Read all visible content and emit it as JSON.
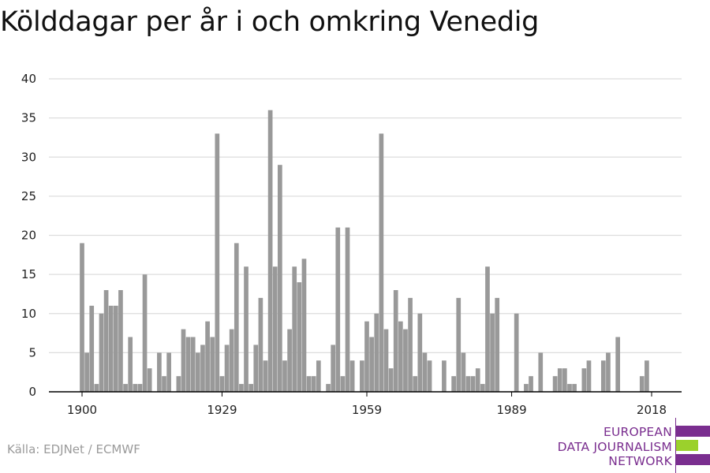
{
  "title": "Kölddagar per år i och omkring Venedig",
  "source": "Källa: EDJNet / ECMWF",
  "logo": {
    "lines": [
      "EUROPEAN",
      "DATA JOURNALISM",
      "NETWORK"
    ],
    "colors": {
      "purple": "#7a2e8f",
      "green": "#9bd12c"
    }
  },
  "colors": {
    "bar": "#999999",
    "grid": "#dddddd",
    "axis": "#000000"
  },
  "chart_data": {
    "type": "bar",
    "title": "Kölddagar per år i och omkring Venedig",
    "xlabel": "",
    "ylabel": "",
    "ylim": [
      0,
      40
    ],
    "yticks": [
      0,
      5,
      10,
      15,
      20,
      25,
      30,
      35,
      40
    ],
    "xticks": [
      1900,
      1929,
      1959,
      1989,
      2018
    ],
    "grid": true,
    "x": [
      1900,
      1901,
      1902,
      1903,
      1904,
      1905,
      1906,
      1907,
      1908,
      1909,
      1910,
      1911,
      1912,
      1913,
      1914,
      1915,
      1916,
      1917,
      1918,
      1919,
      1920,
      1921,
      1922,
      1923,
      1924,
      1925,
      1926,
      1927,
      1928,
      1929,
      1930,
      1931,
      1932,
      1933,
      1934,
      1935,
      1936,
      1937,
      1938,
      1939,
      1940,
      1941,
      1942,
      1943,
      1944,
      1945,
      1946,
      1947,
      1948,
      1949,
      1950,
      1951,
      1952,
      1953,
      1954,
      1955,
      1956,
      1957,
      1958,
      1959,
      1960,
      1961,
      1962,
      1963,
      1964,
      1965,
      1966,
      1967,
      1968,
      1969,
      1970,
      1971,
      1972,
      1973,
      1974,
      1975,
      1976,
      1977,
      1978,
      1979,
      1980,
      1981,
      1982,
      1983,
      1984,
      1985,
      1986,
      1987,
      1988,
      1989,
      1990,
      1991,
      1992,
      1993,
      1994,
      1995,
      1996,
      1997,
      1998,
      1999,
      2000,
      2001,
      2002,
      2003,
      2004,
      2005,
      2006,
      2007,
      2008,
      2009,
      2010,
      2011,
      2012,
      2013,
      2014,
      2015,
      2016,
      2017,
      2018
    ],
    "values": [
      19,
      5,
      11,
      1,
      10,
      13,
      11,
      11,
      13,
      1,
      7,
      1,
      1,
      15,
      3,
      0,
      5,
      2,
      5,
      0,
      2,
      8,
      7,
      7,
      5,
      6,
      9,
      7,
      33,
      2,
      6,
      8,
      19,
      1,
      16,
      1,
      6,
      12,
      4,
      36,
      16,
      29,
      4,
      8,
      16,
      14,
      17,
      2,
      2,
      4,
      0,
      1,
      6,
      21,
      2,
      21,
      4,
      0,
      4,
      9,
      7,
      10,
      33,
      8,
      3,
      13,
      9,
      8,
      12,
      2,
      10,
      5,
      4,
      0,
      0,
      4,
      0,
      2,
      12,
      5,
      2,
      2,
      3,
      1,
      16,
      10,
      12,
      0,
      0,
      0,
      10,
      0,
      1,
      2,
      0,
      5,
      0,
      0,
      2,
      3,
      3,
      1,
      1,
      0,
      3,
      4,
      0,
      0,
      4,
      5,
      0,
      7,
      0,
      0,
      0,
      0,
      2,
      4,
      0
    ]
  }
}
